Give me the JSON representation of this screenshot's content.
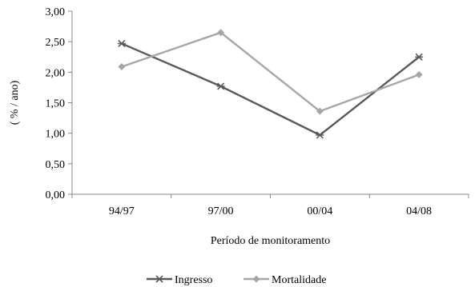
{
  "chart_data": {
    "type": "line",
    "categories": [
      "94/97",
      "97/00",
      "00/04",
      "04/08"
    ],
    "series": [
      {
        "name": "Ingresso",
        "values": [
          2.47,
          1.77,
          0.97,
          2.25
        ],
        "color": "#595959",
        "marker": "star"
      },
      {
        "name": "Mortalidade",
        "values": [
          2.09,
          2.65,
          1.36,
          1.96
        ],
        "color": "#a6a6a6",
        "marker": "diamond"
      }
    ],
    "xlabel": "Período de monitoramento",
    "ylabel": "( % / ano)",
    "ylim": [
      0,
      3
    ],
    "yticks": [
      "0,00",
      "0,50",
      "1,00",
      "1,50",
      "2,00",
      "2,50",
      "3,00"
    ],
    "grid": false,
    "legend": "bottom"
  }
}
